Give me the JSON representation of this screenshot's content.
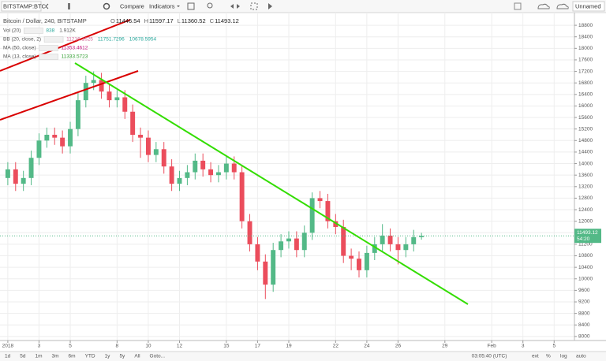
{
  "toolbar": {
    "symbol": "BITSTAMP:BTC",
    "compare": "Compare",
    "indicators": "Indicators",
    "layout": "Unnamed"
  },
  "legend": {
    "title": "Bitcoin / Dollar, 240, BITSTAMP",
    "ohlc": [
      {
        "key": "O",
        "text": "11446.54"
      },
      {
        "key": "H",
        "text": "11597.17"
      },
      {
        "key": "L",
        "text": "11360.52"
      },
      {
        "key": "C",
        "text": "11493.12"
      }
    ],
    "indicators": [
      {
        "name": "Vol (20)",
        "values": [
          "838",
          "1.912K"
        ]
      },
      {
        "name": "BB (20, close, 2)",
        "values": [
          "11216.1625",
          "11751.7296",
          "10678.5954"
        ]
      },
      {
        "name": "MA (50, close)",
        "values": [
          "11353.4612"
        ]
      },
      {
        "name": "MA (13, close)",
        "values": [
          "11333.5723"
        ]
      }
    ]
  },
  "price_axis": {
    "last_price": "11493.12",
    "countdown": "54:20"
  },
  "bottom_bar": {
    "ranges": [
      "1d",
      "5d",
      "1m",
      "3m",
      "6m",
      "YTD",
      "1y",
      "5y",
      "All",
      "Goto..."
    ],
    "clock": "03:05:40 (UTC)",
    "options": [
      "ext",
      "%",
      "log",
      "auto"
    ]
  },
  "chart_data": {
    "type": "candlestick",
    "up_color": "#53b987",
    "down_color": "#eb4d5c",
    "grid": true,
    "x": [
      1,
      1.5,
      2,
      2.5,
      3,
      3.5,
      4,
      4.5,
      5,
      5.5,
      6,
      6.5,
      7,
      7.5,
      8,
      8.5,
      9,
      9.5,
      10,
      10.5,
      11,
      11.5,
      12,
      12.5,
      13,
      13.5,
      14,
      14.5,
      15,
      15.5,
      16,
      16.5,
      17,
      17.5,
      18,
      18.5,
      19,
      19.5,
      20,
      20.5,
      21,
      21.5,
      22,
      22.5,
      23,
      23.5,
      24,
      24.5,
      25,
      25.5,
      26,
      26.5,
      27,
      27.5
    ],
    "open": [
      13500,
      13800,
      13300,
      13500,
      14200,
      14800,
      15000,
      14900,
      14600,
      15200,
      16200,
      16800,
      16900,
      16500,
      16200,
      16300,
      15800,
      15000,
      14900,
      14300,
      14500,
      13900,
      13300,
      13500,
      13700,
      14100,
      13800,
      13600,
      13700,
      14000,
      13700,
      12000,
      11200,
      10600,
      9800,
      11000,
      11300,
      11400,
      11000,
      11600,
      12800,
      12700,
      12000,
      11800,
      10800,
      10700,
      10300,
      10900,
      11200,
      11500,
      11200,
      11000,
      11200,
      11446.54
    ],
    "high": [
      14050,
      14050,
      13750,
      14450,
      15050,
      15250,
      15250,
      15150,
      15450,
      16450,
      17050,
      17200,
      17150,
      16750,
      16550,
      16550,
      16050,
      15250,
      15150,
      14750,
      14750,
      14150,
      13750,
      13950,
      14350,
      14350,
      14050,
      13950,
      14250,
      14250,
      13950,
      12250,
      11450,
      10850,
      11250,
      11550,
      11650,
      11650,
      11850,
      13000,
      13050,
      12950,
      12250,
      12050,
      11050,
      10950,
      11150,
      11450,
      11900,
      11750,
      11450,
      11450,
      11700,
      11597.17
    ],
    "low": [
      13250,
      13050,
      13050,
      13250,
      13950,
      14550,
      14650,
      14350,
      14350,
      14950,
      15950,
      16550,
      16250,
      15950,
      15950,
      15550,
      14750,
      14200,
      14050,
      14050,
      13650,
      13050,
      13050,
      13250,
      13450,
      13550,
      13350,
      13350,
      13450,
      13450,
      11750,
      10950,
      10300,
      9300,
      9550,
      10750,
      11050,
      10750,
      10750,
      11350,
      12450,
      11750,
      11550,
      10550,
      10300,
      10050,
      10050,
      10650,
      10950,
      10950,
      10500,
      10750,
      10950,
      11360.52
    ],
    "close": [
      13800,
      13300,
      13500,
      14200,
      14800,
      15000,
      14900,
      14600,
      15200,
      16200,
      16800,
      16900,
      16500,
      16200,
      16300,
      15800,
      15000,
      14900,
      14300,
      14500,
      13900,
      13300,
      13500,
      13700,
      14100,
      13800,
      13600,
      13700,
      14000,
      13700,
      12000,
      11200,
      10600,
      9800,
      11000,
      11300,
      11400,
      11000,
      11600,
      12800,
      12700,
      12000,
      11800,
      10800,
      10700,
      10300,
      10900,
      11200,
      11500,
      11200,
      11000,
      11200,
      11446.54,
      11493.12
    ],
    "xlim": [
      0.5,
      37.3
    ],
    "xticks": [
      {
        "value": 1,
        "label": "2018"
      },
      3,
      5,
      8,
      10,
      12,
      15,
      17,
      19,
      22,
      24,
      26,
      29,
      {
        "value": 32,
        "label": "Feb"
      },
      {
        "value": 34,
        "label": "3"
      },
      {
        "value": 36,
        "label": "5"
      }
    ],
    "ylim": [
      7860,
      19240
    ],
    "yticks": [
      8000,
      8400,
      8800,
      9200,
      9600,
      10000,
      10400,
      10800,
      11200,
      11600,
      12000,
      12400,
      12800,
      13200,
      13600,
      14000,
      14400,
      14800,
      15200,
      15600,
      16000,
      16400,
      16800,
      17200,
      17600,
      18000,
      18400,
      18800
    ]
  }
}
